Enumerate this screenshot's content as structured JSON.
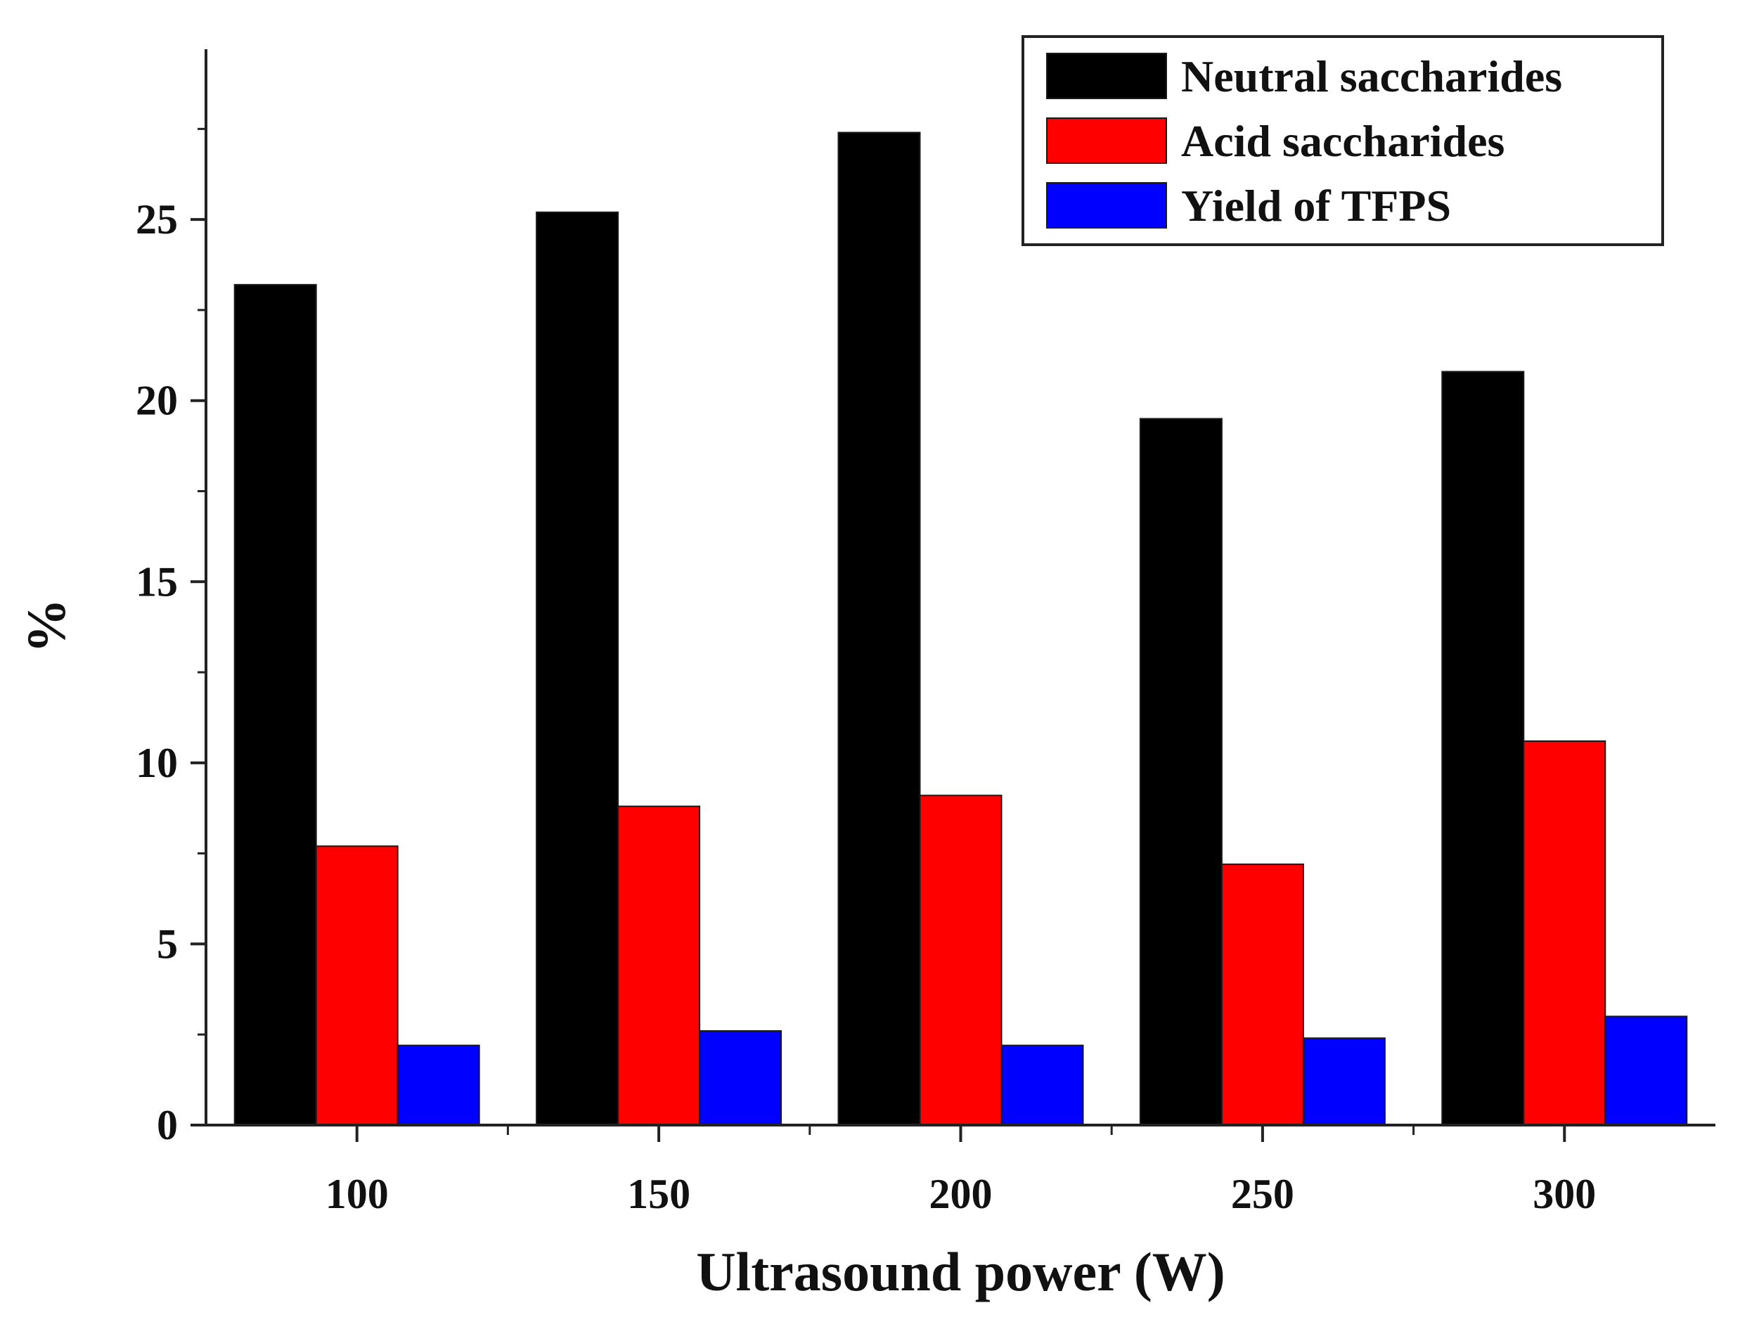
{
  "chart_data": {
    "type": "bar",
    "title": "",
    "xlabel": "Ultrasound power (W)",
    "ylabel": "%",
    "categories": [
      "100",
      "150",
      "200",
      "250",
      "300"
    ],
    "series": [
      {
        "name": "Neutral saccharides",
        "color": "#000000",
        "values": [
          23.2,
          25.2,
          27.4,
          19.5,
          20.8
        ]
      },
      {
        "name": "Acid saccharides",
        "color": "#ff0000",
        "values": [
          7.7,
          8.8,
          9.1,
          7.2,
          10.6
        ]
      },
      {
        "name": "Yield of TFPS",
        "color": "#0000ff",
        "values": [
          2.2,
          2.6,
          2.2,
          2.4,
          3.0
        ]
      }
    ],
    "ylim": [
      0,
      29.7
    ],
    "yticks": [
      0,
      5,
      10,
      15,
      20,
      25
    ],
    "yticks_minor": [
      2.5,
      7.5,
      12.5,
      17.5,
      22.5,
      27.5
    ],
    "grid": false,
    "legend_position": "top-right"
  }
}
